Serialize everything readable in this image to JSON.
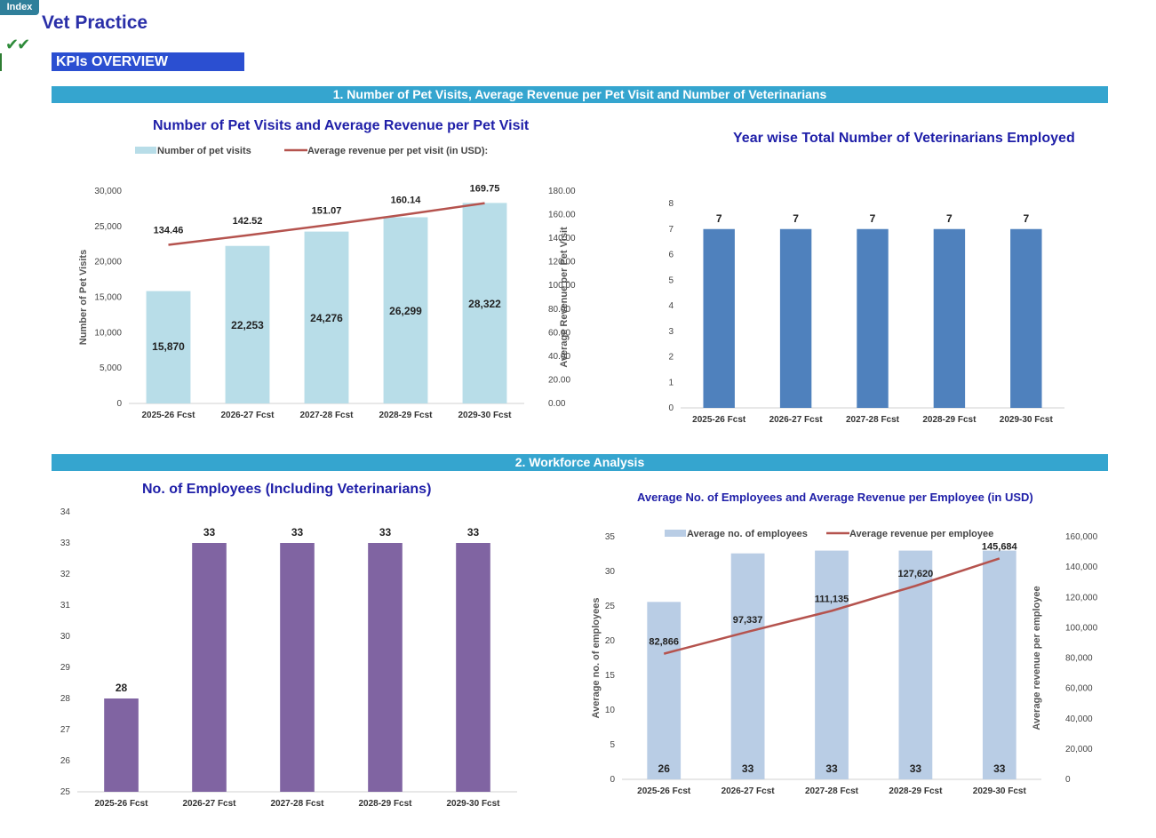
{
  "header": {
    "index_tab": "Index",
    "title": "Vet Practice",
    "check_icon": "✔✔",
    "kpi_label": "KPIs OVERVIEW"
  },
  "sections": {
    "s1": "1. Number of Pet Visits, Average Revenue per Pet Visit and Number of Veterinarians",
    "s2": "2. Workforce Analysis"
  },
  "colors": {
    "section_bar": "#35a5cf",
    "title_blue": "#1f1fa8",
    "light_blue_bar": "#b8dde8",
    "red_line": "#b5534e",
    "steel_blue_bar": "#4f81bd",
    "purple_bar": "#8064a2",
    "pale_blue_bar": "#b9cde5"
  },
  "chart_data": [
    {
      "id": "visits",
      "type": "bar",
      "title": "Number of Pet Visits and  Average Revenue per Pet Visit",
      "categories": [
        "2025-26 Fcst",
        "2026-27 Fcst",
        "2027-28 Fcst",
        "2028-29 Fcst",
        "2029-30 Fcst"
      ],
      "series": [
        {
          "name": "Number of pet visits",
          "type": "bar",
          "axis": "left",
          "values": [
            15870,
            22253,
            24276,
            26299,
            28322
          ],
          "labels": [
            "15,870",
            "22,253",
            "24,276",
            "26,299",
            "28,322"
          ]
        },
        {
          "name": "Average revenue per pet visit (in USD):",
          "type": "line",
          "axis": "right",
          "values": [
            134.46,
            142.52,
            151.07,
            160.14,
            169.75
          ],
          "labels": [
            "134.46",
            "142.52",
            "151.07",
            "160.14",
            "169.75"
          ]
        }
      ],
      "ylabel": "Number of Pet  Visits",
      "y2label": "Average Revenue per Pet Visit",
      "ylim": [
        0,
        30000
      ],
      "y2lim": [
        0,
        180
      ],
      "yticks": [
        "0",
        "5,000",
        "10,000",
        "15,000",
        "20,000",
        "25,000",
        "30,000"
      ],
      "y2ticks": [
        "0.00",
        "20.00",
        "40.00",
        "60.00",
        "80.00",
        "100.00",
        "120.00",
        "140.00",
        "160.00",
        "180.00"
      ],
      "legend": "top"
    },
    {
      "id": "vets",
      "type": "bar",
      "title": "Year wise Total Number of Veterinarians Employed",
      "categories": [
        "2025-26 Fcst",
        "2026-27 Fcst",
        "2027-28 Fcst",
        "2028-29 Fcst",
        "2029-30 Fcst"
      ],
      "series": [
        {
          "values": [
            7,
            7,
            7,
            7,
            7
          ],
          "labels": [
            "7",
            "7",
            "7",
            "7",
            "7"
          ]
        }
      ],
      "ylim": [
        0,
        8
      ],
      "yticks": [
        "0",
        "1",
        "2",
        "3",
        "4",
        "5",
        "6",
        "7",
        "8"
      ]
    },
    {
      "id": "employees",
      "type": "bar",
      "title": "No. of Employees (Including Veterinarians)",
      "categories": [
        "2025-26 Fcst",
        "2026-27 Fcst",
        "2027-28 Fcst",
        "2028-29 Fcst",
        "2029-30 Fcst"
      ],
      "series": [
        {
          "values": [
            28,
            33,
            33,
            33,
            33
          ],
          "labels": [
            "28",
            "33",
            "33",
            "33",
            "33"
          ]
        }
      ],
      "ylim": [
        25,
        34
      ],
      "yticks": [
        "25",
        "26",
        "27",
        "28",
        "29",
        "30",
        "31",
        "32",
        "33",
        "34"
      ]
    },
    {
      "id": "avgemp",
      "type": "bar",
      "title": "Average No. of Employees and Average Revenue per Employee (in USD)",
      "categories": [
        "2025-26 Fcst",
        "2026-27 Fcst",
        "2027-28 Fcst",
        "2028-29 Fcst",
        "2029-30 Fcst"
      ],
      "series": [
        {
          "name": "Average no. of employees",
          "type": "bar",
          "axis": "left",
          "values": [
            25.6,
            32.6,
            33,
            33,
            33
          ],
          "labels": [
            "26",
            "33",
            "33",
            "33",
            "33"
          ]
        },
        {
          "name": "Average revenue per employee",
          "type": "line",
          "axis": "right",
          "values": [
            82866,
            97337,
            111135,
            127620,
            145684
          ],
          "labels": [
            "82,866",
            "97,337",
            "111,135",
            "127,620",
            "145,684"
          ]
        }
      ],
      "ylabel": "Average no. of  employees",
      "y2label": "Average revenue per employee",
      "ylim": [
        0,
        35
      ],
      "y2lim": [
        0,
        160000
      ],
      "yticks": [
        "0",
        "5",
        "10",
        "15",
        "20",
        "25",
        "30",
        "35"
      ],
      "y2ticks": [
        "0",
        "20,000",
        "40,000",
        "60,000",
        "80,000",
        "100,000",
        "120,000",
        "140,000",
        "160,000"
      ],
      "legend": "top"
    }
  ]
}
